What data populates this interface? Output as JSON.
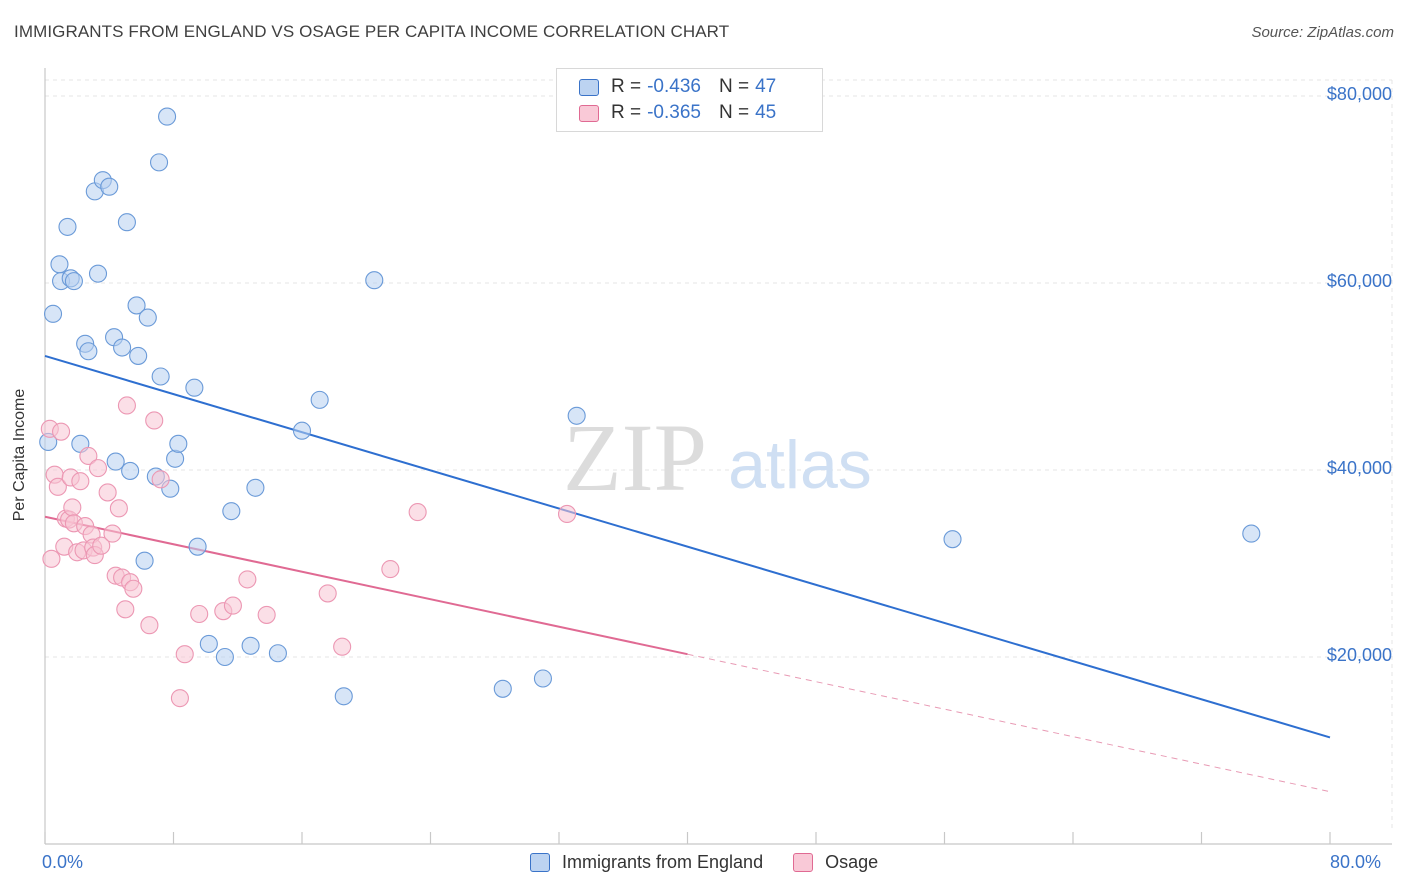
{
  "header": {
    "title": "IMMIGRANTS FROM ENGLAND VS OSAGE PER CAPITA INCOME CORRELATION CHART",
    "source": "Source: ZipAtlas.com"
  },
  "watermark": {
    "zip": "ZIP",
    "atlas": "atlas"
  },
  "legend": {
    "rows": [
      {
        "r_label": "R =",
        "r_value": "-0.436",
        "n_label": "N =",
        "n_value": "47"
      },
      {
        "r_label": "R =",
        "r_value": "-0.365",
        "n_label": "N =",
        "n_value": "45"
      }
    ]
  },
  "bottom_legend": [
    "Immigrants from England",
    "Osage"
  ],
  "chart_data": {
    "type": "scatter",
    "ylabel": "Per Capita Income",
    "xlim": [
      0,
      80
    ],
    "ylim": [
      0,
      82000
    ],
    "x_tick_labels": [
      "0.0%",
      "80.0%"
    ],
    "y_ticks": [
      {
        "value": 20000,
        "label": "$20,000"
      },
      {
        "value": 40000,
        "label": "$40,000"
      },
      {
        "value": 60000,
        "label": "$60,000"
      },
      {
        "value": 80000,
        "label": "$80,000"
      }
    ],
    "grid": true,
    "colors": {
      "blue": "#3a73c8",
      "blue_fill": "#a9c6ee",
      "pink": "#e06a93",
      "pink_fill": "#f6b8cb"
    },
    "series": [
      {
        "name": "Immigrants from England",
        "color": "#3a73c8",
        "points": [
          [
            0.2,
            43000
          ],
          [
            0.5,
            56700
          ],
          [
            0.9,
            62000
          ],
          [
            1.0,
            60200
          ],
          [
            1.4,
            66000
          ],
          [
            1.6,
            60500
          ],
          [
            1.8,
            60200
          ],
          [
            2.2,
            42800
          ],
          [
            2.5,
            53500
          ],
          [
            2.7,
            52700
          ],
          [
            3.1,
            69800
          ],
          [
            3.3,
            61000
          ],
          [
            3.6,
            71000
          ],
          [
            4.0,
            70300
          ],
          [
            4.3,
            54200
          ],
          [
            4.4,
            40900
          ],
          [
            4.8,
            53100
          ],
          [
            5.1,
            66500
          ],
          [
            5.3,
            39900
          ],
          [
            5.7,
            57600
          ],
          [
            5.8,
            52200
          ],
          [
            6.2,
            30300
          ],
          [
            6.4,
            56300
          ],
          [
            6.9,
            39300
          ],
          [
            7.1,
            72900
          ],
          [
            7.2,
            50000
          ],
          [
            7.6,
            77800
          ],
          [
            7.8,
            38000
          ],
          [
            8.1,
            41200
          ],
          [
            8.3,
            42800
          ],
          [
            9.3,
            48800
          ],
          [
            9.5,
            31800
          ],
          [
            10.2,
            21400
          ],
          [
            11.2,
            20000
          ],
          [
            11.6,
            35600
          ],
          [
            12.8,
            21200
          ],
          [
            13.1,
            38100
          ],
          [
            14.5,
            20400
          ],
          [
            16.0,
            44200
          ],
          [
            17.1,
            47500
          ],
          [
            18.6,
            15800
          ],
          [
            20.5,
            60300
          ],
          [
            28.5,
            16600
          ],
          [
            31.0,
            17700
          ],
          [
            33.1,
            45800
          ],
          [
            56.5,
            32600
          ],
          [
            75.1,
            33200
          ]
        ],
        "trend": {
          "x0": 0,
          "y0": 52200,
          "x1": 80,
          "y1": 11400
        }
      },
      {
        "name": "Osage",
        "color": "#e06a93",
        "points": [
          [
            0.3,
            44400
          ],
          [
            0.6,
            39500
          ],
          [
            0.8,
            38200
          ],
          [
            1.0,
            44100
          ],
          [
            1.2,
            31800
          ],
          [
            1.3,
            34800
          ],
          [
            1.5,
            34700
          ],
          [
            1.6,
            39200
          ],
          [
            1.7,
            36000
          ],
          [
            1.8,
            34300
          ],
          [
            2.0,
            31200
          ],
          [
            2.2,
            38800
          ],
          [
            2.4,
            31400
          ],
          [
            2.5,
            34000
          ],
          [
            2.7,
            41500
          ],
          [
            2.9,
            33100
          ],
          [
            3.0,
            31700
          ],
          [
            3.1,
            30900
          ],
          [
            3.3,
            40200
          ],
          [
            3.5,
            31900
          ],
          [
            3.9,
            37600
          ],
          [
            4.2,
            33200
          ],
          [
            4.4,
            28700
          ],
          [
            4.6,
            35900
          ],
          [
            4.8,
            28500
          ],
          [
            5.0,
            25100
          ],
          [
            5.1,
            46900
          ],
          [
            5.3,
            28000
          ],
          [
            5.5,
            27300
          ],
          [
            6.5,
            23400
          ],
          [
            6.8,
            45300
          ],
          [
            7.2,
            39000
          ],
          [
            8.4,
            15600
          ],
          [
            8.7,
            20300
          ],
          [
            9.6,
            24600
          ],
          [
            11.1,
            24900
          ],
          [
            11.7,
            25500
          ],
          [
            12.6,
            28300
          ],
          [
            13.8,
            24500
          ],
          [
            17.6,
            26800
          ],
          [
            18.5,
            21100
          ],
          [
            21.5,
            29400
          ],
          [
            23.2,
            35500
          ],
          [
            32.5,
            35300
          ],
          [
            0.4,
            30500
          ]
        ],
        "trend": {
          "x0": 0,
          "y0": 35000,
          "x1": 40,
          "y1": 20300
        },
        "trend_extension": {
          "x0": 40,
          "y0": 20300,
          "x1": 80,
          "y1": 5600
        }
      }
    ]
  }
}
